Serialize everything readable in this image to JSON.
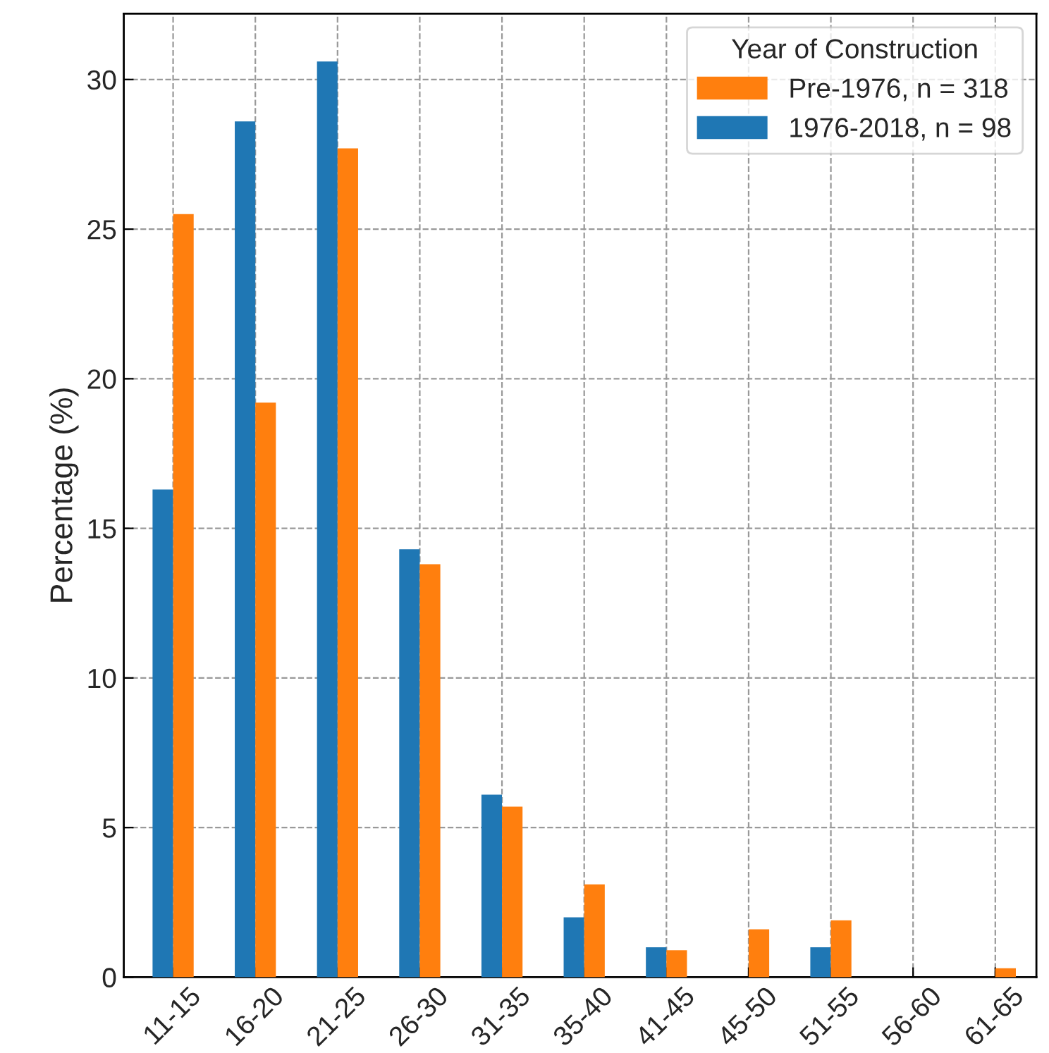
{
  "chart_data": {
    "type": "bar",
    "ylabel": "Percentage (%)",
    "legend_title": "Year of Construction",
    "categories": [
      "11-15",
      "16-20",
      "21-25",
      "26-30",
      "31-35",
      "35-40",
      "41-45",
      "45-50",
      "51-55",
      "56-60",
      "61-65"
    ],
    "series": [
      {
        "name": "1976-2018, n = 98",
        "color": "#1f77b4",
        "values": [
          16.3,
          28.6,
          30.6,
          14.3,
          6.1,
          2.0,
          1.0,
          0,
          1.0,
          0,
          0
        ]
      },
      {
        "name": "Pre-1976, n = 318",
        "color": "#ff7f0e",
        "values": [
          25.5,
          19.2,
          27.7,
          13.8,
          5.7,
          3.1,
          0.9,
          1.6,
          1.9,
          0,
          0.3
        ]
      }
    ],
    "ylim": [
      0,
      32.2
    ],
    "yticks": [
      0,
      5,
      10,
      15,
      20,
      25,
      30
    ],
    "grid": true,
    "legend": "top right"
  }
}
